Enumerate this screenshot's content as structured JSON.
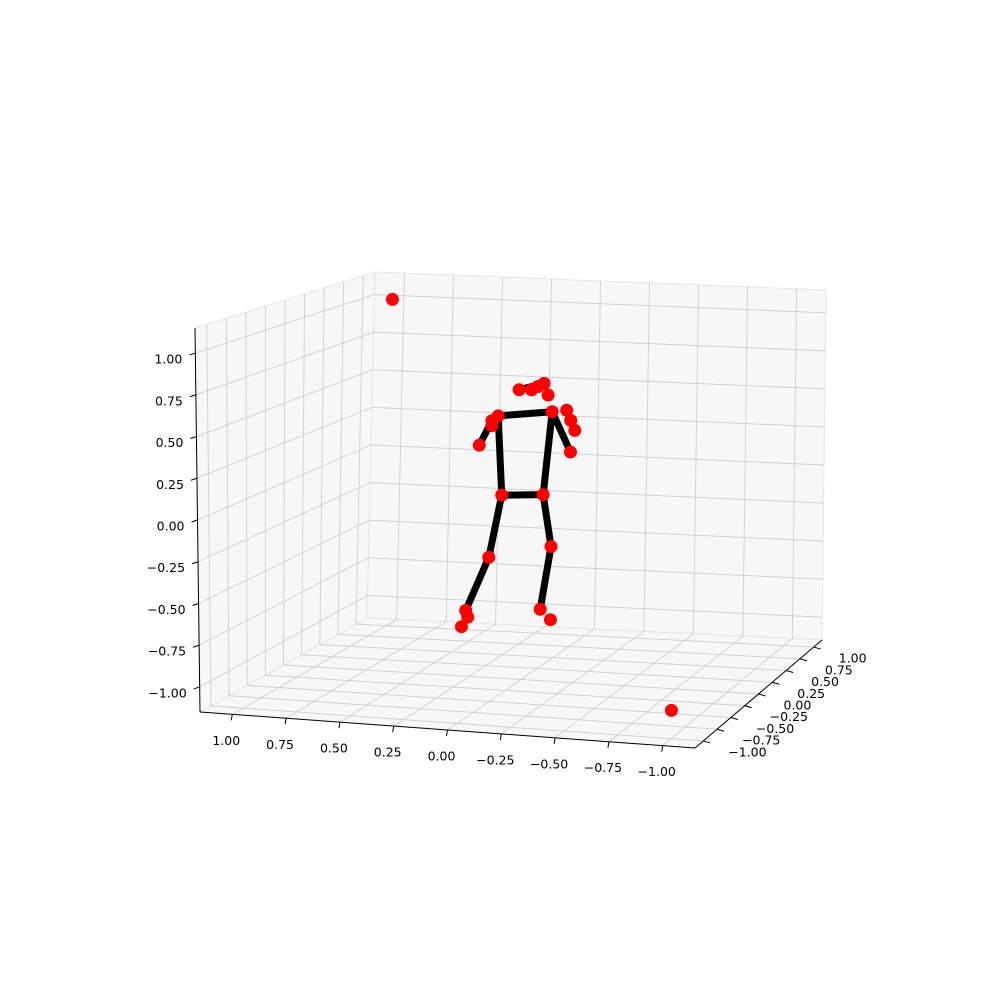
{
  "chart_data": {
    "type": "scatter3d",
    "xlim": [
      -1.15,
      1.15
    ],
    "ylim": [
      -1.15,
      1.15
    ],
    "zlim": [
      -1.15,
      1.15
    ],
    "xticks": [
      {
        "value": -1,
        "label": "−1.00"
      },
      {
        "value": -0.75,
        "label": "−0.75"
      },
      {
        "value": -0.5,
        "label": "−0.50"
      },
      {
        "value": -0.25,
        "label": "−0.25"
      },
      {
        "value": 0,
        "label": "0.00"
      },
      {
        "value": 0.25,
        "label": "0.25"
      },
      {
        "value": 0.5,
        "label": "0.50"
      },
      {
        "value": 0.75,
        "label": "0.75"
      },
      {
        "value": 1,
        "label": "1.00"
      }
    ],
    "yticks": [
      {
        "value": -1,
        "label": "−1.00"
      },
      {
        "value": -0.75,
        "label": "−0.75"
      },
      {
        "value": -0.5,
        "label": "−0.50"
      },
      {
        "value": -0.25,
        "label": "−0.25"
      },
      {
        "value": 0,
        "label": "0.00"
      },
      {
        "value": 0.25,
        "label": "0.25"
      },
      {
        "value": 0.5,
        "label": "0.50"
      },
      {
        "value": 0.75,
        "label": "0.75"
      },
      {
        "value": 1,
        "label": "1.00"
      }
    ],
    "zticks": [
      {
        "value": -1,
        "label": "−1.00"
      },
      {
        "value": -0.75,
        "label": "−0.75"
      },
      {
        "value": -0.5,
        "label": "−0.50"
      },
      {
        "value": -0.25,
        "label": "−0.25"
      },
      {
        "value": 0,
        "label": "0.00"
      },
      {
        "value": 0.25,
        "label": "0.25"
      },
      {
        "value": 0.5,
        "label": "0.50"
      },
      {
        "value": 0.75,
        "label": "0.75"
      },
      {
        "value": 1,
        "label": "1.00"
      }
    ],
    "grid": true,
    "points": {
      "color": "#ff0000",
      "x": [
        1,
        -1,
        -0.07,
        -0.1,
        -0.04,
        0.02,
        -0.12,
        0.12,
        -0.14,
        0.15,
        0.15,
        0.21,
        -0.21,
        -0.23,
        -0.25,
        -0.23,
        0.1,
        -0.1,
        0.16,
        -0.14,
        0.27,
        0.26,
        0.29,
        -0.09,
        -0.14
      ],
      "y": [
        1,
        -1,
        0,
        0,
        0,
        0,
        0,
        0,
        0,
        0,
        0,
        0,
        0,
        0,
        0,
        0,
        0,
        0,
        0,
        0,
        0,
        0,
        0,
        0,
        0
      ],
      "z": [
        1,
        -1,
        0.62,
        0.64,
        0.6,
        0.6,
        0.57,
        0.44,
        0.47,
        0.41,
        0.38,
        0.26,
        0.48,
        0.42,
        0.36,
        0.23,
        -0.04,
        -0.03,
        -0.42,
        -0.34,
        -0.75,
        -0.79,
        -0.85,
        -0.72,
        -0.78
      ]
    },
    "edges": {
      "color": "#000000",
      "pairs": [
        [
          5,
          3
        ],
        [
          7,
          8
        ],
        [
          7,
          9
        ],
        [
          9,
          11
        ],
        [
          8,
          15
        ],
        [
          7,
          16
        ],
        [
          8,
          17
        ],
        [
          16,
          17
        ],
        [
          16,
          18
        ],
        [
          18,
          20
        ],
        [
          17,
          19
        ],
        [
          19,
          23
        ]
      ]
    }
  }
}
